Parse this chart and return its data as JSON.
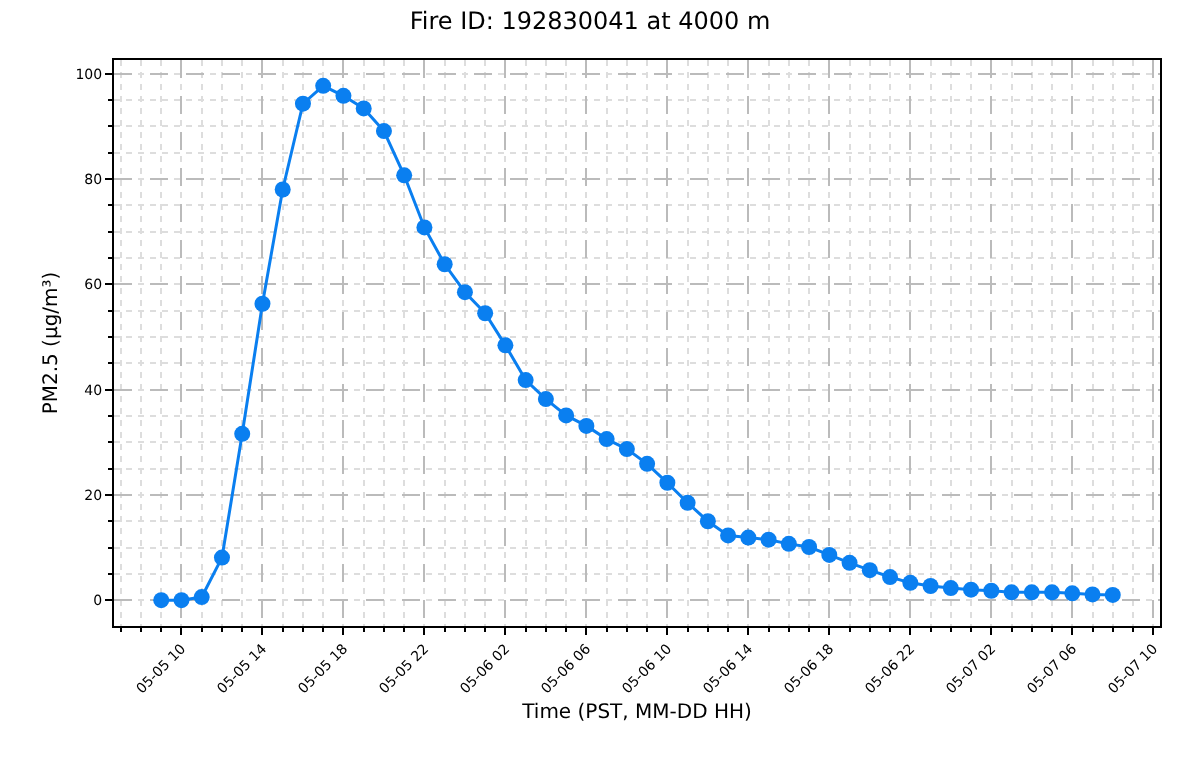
{
  "chart_data": {
    "type": "line",
    "title": "Fire ID: 192830041 at 4000 m",
    "xlabel": "Time (PST, MM-DD HH)",
    "ylabel": "PM2.5 (µg/m³)",
    "x": [
      "--05-05T09:00",
      "--05-05T10:00",
      "--05-05T11:00",
      "--05-05T12:00",
      "--05-05T13:00",
      "--05-05T14:00",
      "--05-05T15:00",
      "--05-05T16:00",
      "--05-05T17:00",
      "--05-05T18:00",
      "--05-05T19:00",
      "--05-05T20:00",
      "--05-05T21:00",
      "--05-05T22:00",
      "--05-05T23:00",
      "--05-06T00:00",
      "--05-06T01:00",
      "--05-06T02:00",
      "--05-06T03:00",
      "--05-06T04:00",
      "--05-06T05:00",
      "--05-06T06:00",
      "--05-06T07:00",
      "--05-06T08:00",
      "--05-06T09:00",
      "--05-06T10:00",
      "--05-06T11:00",
      "--05-06T12:00",
      "--05-06T13:00",
      "--05-06T14:00",
      "--05-06T15:00",
      "--05-06T16:00",
      "--05-06T17:00",
      "--05-06T18:00",
      "--05-06T19:00",
      "--05-06T20:00",
      "--05-06T21:00",
      "--05-06T22:00",
      "--05-06T23:00",
      "--05-07T00:00",
      "--05-07T01:00",
      "--05-07T02:00",
      "--05-07T03:00",
      "--05-07T04:00",
      "--05-07T05:00",
      "--05-07T06:00",
      "--05-07T07:00",
      "--05-07T08:00"
    ],
    "series": [
      {
        "color": "#0a7ff0",
        "values": [
          0,
          0,
          0.6,
          8.1,
          31.6,
          56.3,
          78.0,
          94.3,
          97.7,
          95.8,
          93.4,
          89.1,
          80.7,
          70.8,
          63.8,
          58.5,
          54.5,
          48.4,
          41.8,
          38.2,
          35.1,
          33.1,
          30.6,
          28.7,
          25.9,
          22.3,
          18.5,
          15.0,
          12.3,
          11.9,
          11.5,
          10.7,
          10.1,
          8.6,
          7.1,
          5.7,
          4.4,
          3.3,
          2.7,
          2.3,
          2.0,
          1.8,
          1.5,
          1.5,
          1.5,
          1.3,
          1.1,
          1.0
        ]
      }
    ],
    "xlim": [
      "--05-05T06:40",
      "--05-07T10:20"
    ],
    "xticks": [
      {
        "value": "--05-05T10:00",
        "label": "05-05 10"
      },
      {
        "value": "--05-05T14:00",
        "label": "05-05 14"
      },
      {
        "value": "--05-05T18:00",
        "label": "05-05 18"
      },
      {
        "value": "--05-05T22:00",
        "label": "05-05 22"
      },
      {
        "value": "--05-06T02:00",
        "label": "05-06 02"
      },
      {
        "value": "--05-06T06:00",
        "label": "05-06 06"
      },
      {
        "value": "--05-06T10:00",
        "label": "05-06 10"
      },
      {
        "value": "--05-06T14:00",
        "label": "05-06 14"
      },
      {
        "value": "--05-06T18:00",
        "label": "05-06 18"
      },
      {
        "value": "--05-06T22:00",
        "label": "05-06 22"
      },
      {
        "value": "--05-07T02:00",
        "label": "05-07 02"
      },
      {
        "value": "--05-07T06:00",
        "label": "05-07 06"
      },
      {
        "value": "--05-07T10:00",
        "label": "05-07 10"
      }
    ],
    "ylim": [
      -4.9,
      102.6
    ],
    "yticks": [
      0,
      20,
      40,
      60,
      80,
      100
    ],
    "grid": true,
    "marker": "circle",
    "line_style": "solid"
  }
}
